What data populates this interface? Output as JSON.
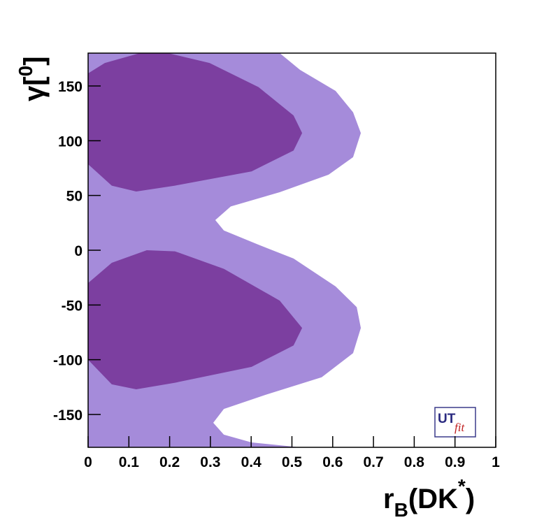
{
  "chart_data": {
    "type": "contour",
    "xlabel": [
      "r",
      "B",
      "(DK",
      "*",
      ")"
    ],
    "ylabel": [
      "γ[",
      "0",
      "]"
    ],
    "logo": [
      "UT",
      "fit"
    ],
    "xlim": [
      0,
      1
    ],
    "ylim": [
      -180,
      180
    ],
    "xticks": [
      0,
      0.1,
      0.2,
      0.3,
      0.4,
      0.5,
      0.6,
      0.7,
      0.8,
      0.9,
      1
    ],
    "yticks": [
      -150,
      -100,
      -50,
      0,
      50,
      100,
      150
    ],
    "regions": [
      {
        "color": "#a58bda",
        "x": [
          0,
          0.47,
          0.52,
          0.607,
          0.65,
          0.669,
          0.65,
          0.59,
          0.47,
          0.35,
          0.312,
          0.333,
          0.418,
          0.504,
          0.607,
          0.659,
          0.669,
          0.65,
          0.573,
          0.436,
          0.333,
          0.307,
          0.333,
          0.401,
          0.52,
          0
        ],
        "y": [
          180,
          180,
          164.7,
          145.5,
          126,
          107,
          85,
          69,
          53,
          40,
          27.5,
          18,
          5,
          -7.6,
          -33,
          -52,
          -71,
          -94,
          -116,
          -132,
          -145,
          -157.6,
          -168.4,
          -175.5,
          -180,
          -180
        ]
      },
      {
        "color": "#7c3fa0",
        "x": [
          0,
          0.041,
          0.127,
          0.196,
          0.298,
          0.418,
          0.504,
          0.525,
          0.504,
          0.401,
          0.213,
          0.118,
          0.058,
          0
        ],
        "y": [
          161.5,
          171,
          180,
          180,
          171,
          149,
          123,
          107,
          91,
          72,
          59,
          53.6,
          59,
          78.5
        ]
      },
      {
        "color": "#7c3fa0",
        "x": [
          0,
          0.058,
          0.144,
          0.213,
          0.333,
          0.47,
          0.525,
          0.504,
          0.401,
          0.213,
          0.118,
          0.058,
          0
        ],
        "y": [
          -30,
          -11.5,
          0,
          -1,
          -17,
          -46,
          -71,
          -87,
          -106.5,
          -121,
          -127,
          -122.5,
          -100
        ]
      }
    ]
  }
}
